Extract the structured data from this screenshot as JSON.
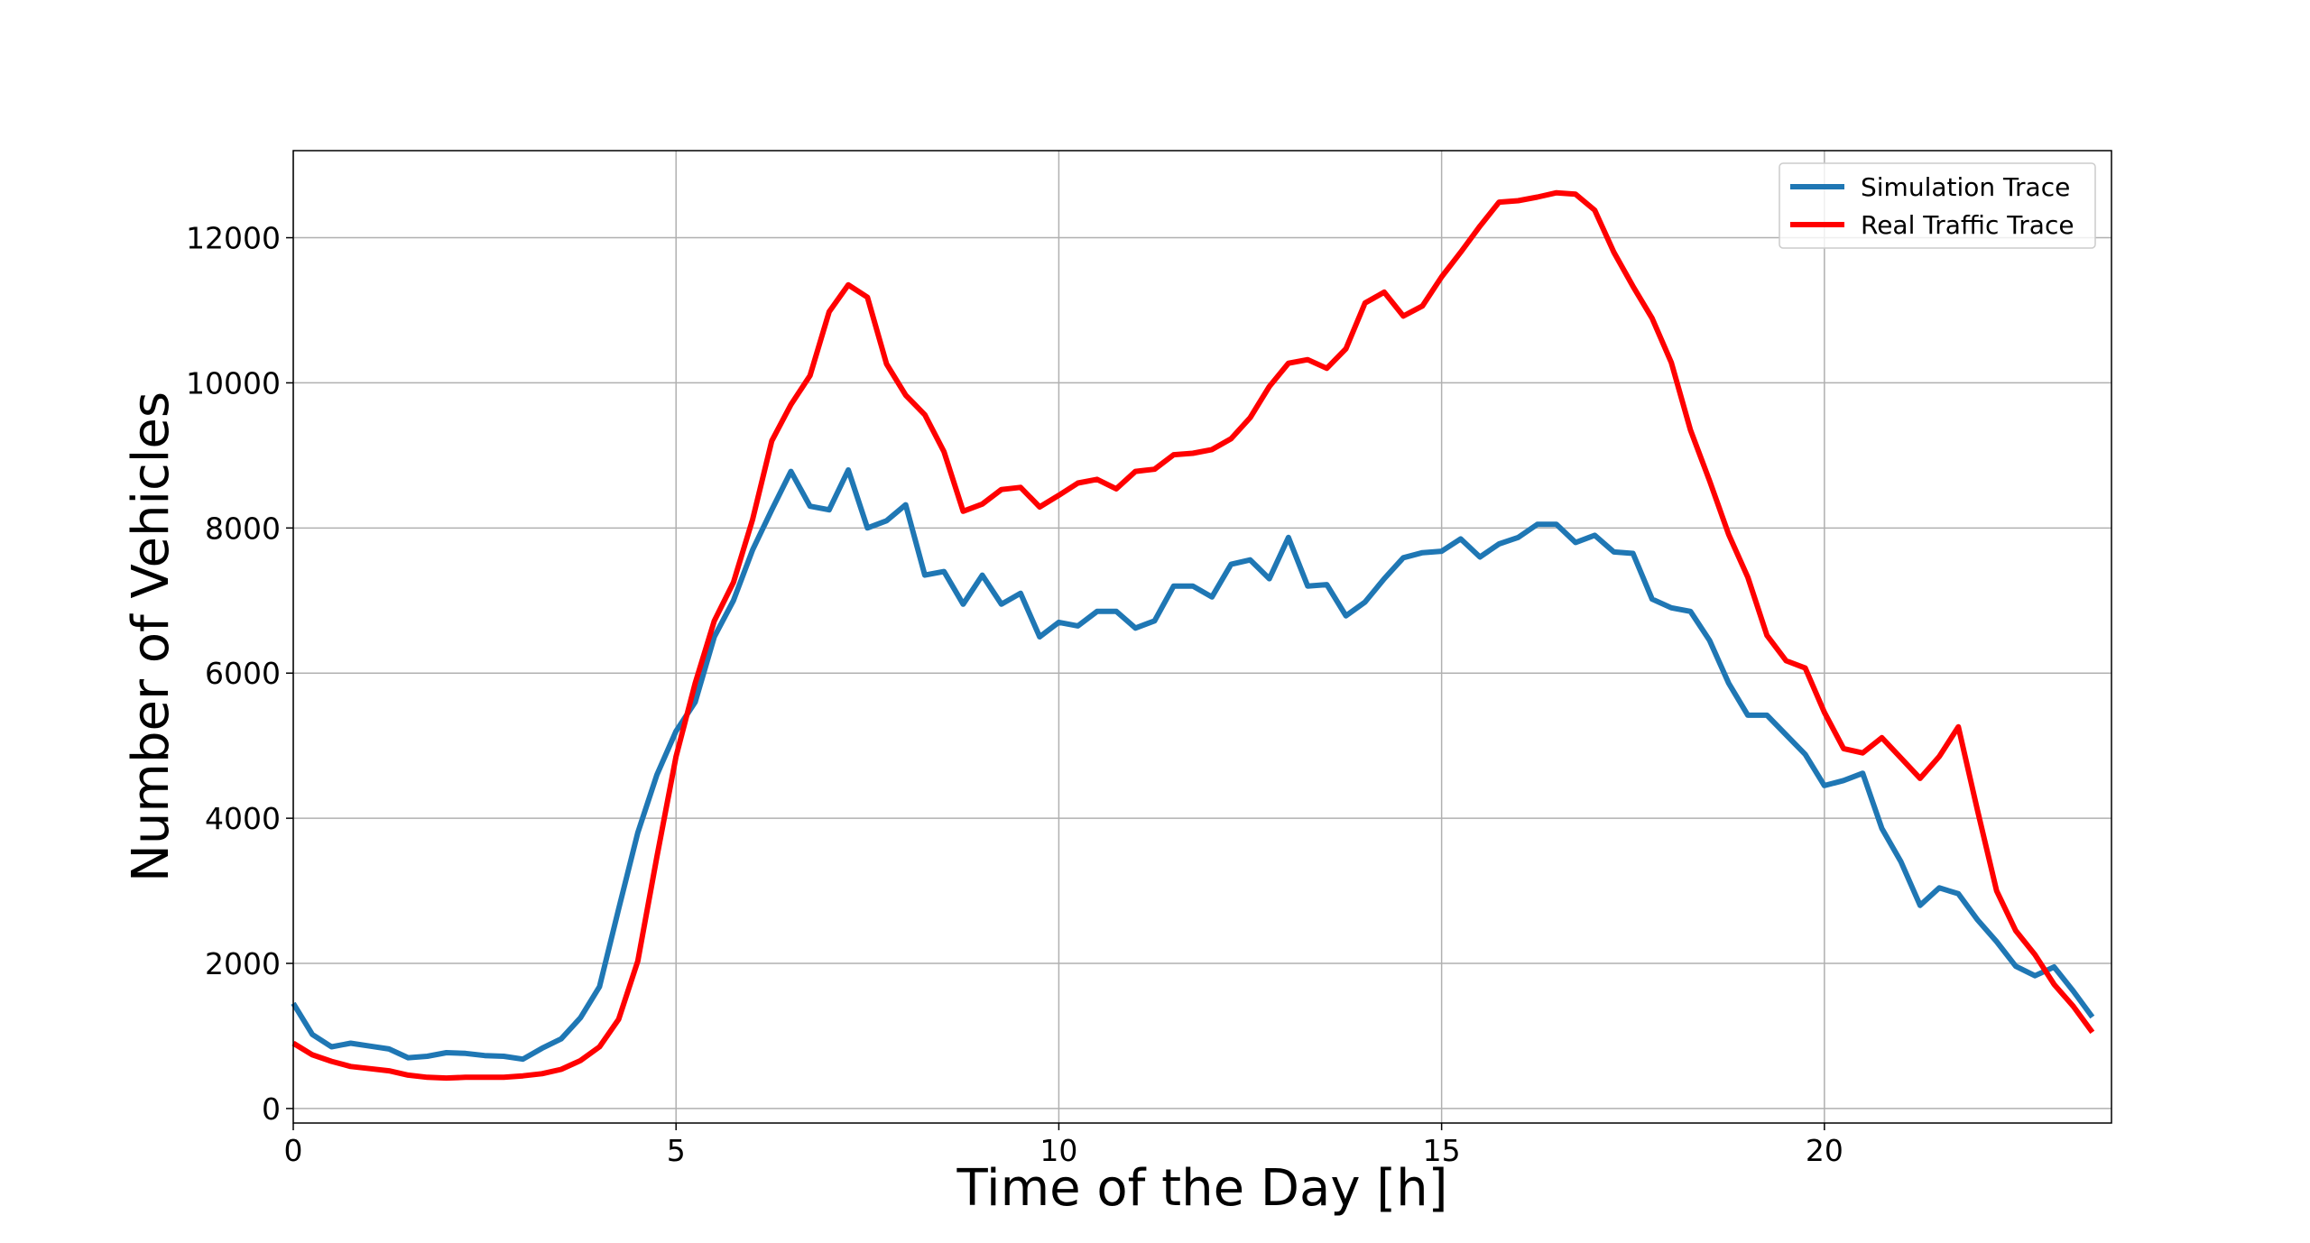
{
  "chart_data": {
    "type": "line",
    "xlabel": "Time of the Day [h]",
    "ylabel": "Number of Vehicles",
    "xlim": [
      0,
      23.75
    ],
    "ylim": [
      -200,
      13200
    ],
    "xticks": [
      0,
      5,
      10,
      15,
      20
    ],
    "yticks": [
      0,
      2000,
      4000,
      6000,
      8000,
      10000,
      12000
    ],
    "grid": true,
    "legend_position": "top-right",
    "x": [
      0,
      0.25,
      0.5,
      0.75,
      1,
      1.25,
      1.5,
      1.75,
      2,
      2.25,
      2.5,
      2.75,
      3,
      3.25,
      3.5,
      3.75,
      4,
      4.25,
      4.5,
      4.75,
      5,
      5.25,
      5.5,
      5.75,
      6,
      6.25,
      6.5,
      6.75,
      7,
      7.25,
      7.5,
      7.75,
      8,
      8.25,
      8.5,
      8.75,
      9,
      9.25,
      9.5,
      9.75,
      10,
      10.25,
      10.5,
      10.75,
      11,
      11.25,
      11.5,
      11.75,
      12,
      12.25,
      12.5,
      12.75,
      13,
      13.25,
      13.5,
      13.75,
      14,
      14.25,
      14.5,
      14.75,
      15,
      15.25,
      15.5,
      15.75,
      16,
      16.25,
      16.5,
      16.75,
      17,
      17.25,
      17.5,
      17.75,
      18,
      18.25,
      18.5,
      18.75,
      19,
      19.25,
      19.5,
      19.75,
      20,
      20.25,
      20.5,
      20.75,
      21,
      21.25,
      21.5,
      21.75,
      22,
      22.25,
      22.5,
      22.75,
      23,
      23.25,
      23.5
    ],
    "series": [
      {
        "name": "Simulation Trace",
        "color": "#1f77b4",
        "values": [
          1450,
          1020,
          850,
          900,
          860,
          820,
          700,
          720,
          770,
          760,
          730,
          720,
          680,
          830,
          960,
          1250,
          1680,
          2750,
          3800,
          4600,
          5200,
          5600,
          6500,
          7000,
          7700,
          8250,
          8780,
          8300,
          8250,
          8800,
          8000,
          8100,
          8320,
          7350,
          7400,
          6950,
          7350,
          6950,
          7100,
          6500,
          6700,
          6650,
          6850,
          6850,
          6620,
          6720,
          7200,
          7200,
          7050,
          7500,
          7560,
          7300,
          7870,
          7200,
          7220,
          6790,
          6980,
          7300,
          7590,
          7660,
          7680,
          7850,
          7600,
          7780,
          7870,
          8050,
          8050,
          7800,
          7900,
          7670,
          7650,
          7020,
          6900,
          6850,
          6450,
          5860,
          5420,
          5420,
          5150,
          4880,
          4450,
          4520,
          4620,
          3860,
          3400,
          2800,
          3040,
          2960,
          2600,
          2300,
          1960,
          1830,
          1950,
          1620,
          1260
        ]
      },
      {
        "name": "Real Traffic Trace",
        "color": "#ff0000",
        "values": [
          900,
          740,
          650,
          580,
          550,
          520,
          460,
          430,
          420,
          430,
          430,
          430,
          450,
          480,
          540,
          660,
          850,
          1230,
          2030,
          3470,
          4850,
          5860,
          6720,
          7250,
          8120,
          9200,
          9700,
          10100,
          10980,
          11350,
          11180,
          10260,
          9830,
          9560,
          9050,
          8230,
          8330,
          8530,
          8560,
          8290,
          8450,
          8620,
          8670,
          8540,
          8780,
          8810,
          9010,
          9030,
          9080,
          9230,
          9520,
          9950,
          10270,
          10320,
          10200,
          10470,
          11100,
          11250,
          10920,
          11060,
          11460,
          11800,
          12160,
          12490,
          12510,
          12560,
          12620,
          12600,
          12380,
          11800,
          11330,
          10890,
          10280,
          9350,
          8650,
          7910,
          7320,
          6520,
          6170,
          6070,
          5460,
          4960,
          4900,
          5110,
          4830,
          4550,
          4850,
          5260,
          4110,
          3000,
          2450,
          2120,
          1710,
          1410,
          1050
        ]
      }
    ]
  }
}
